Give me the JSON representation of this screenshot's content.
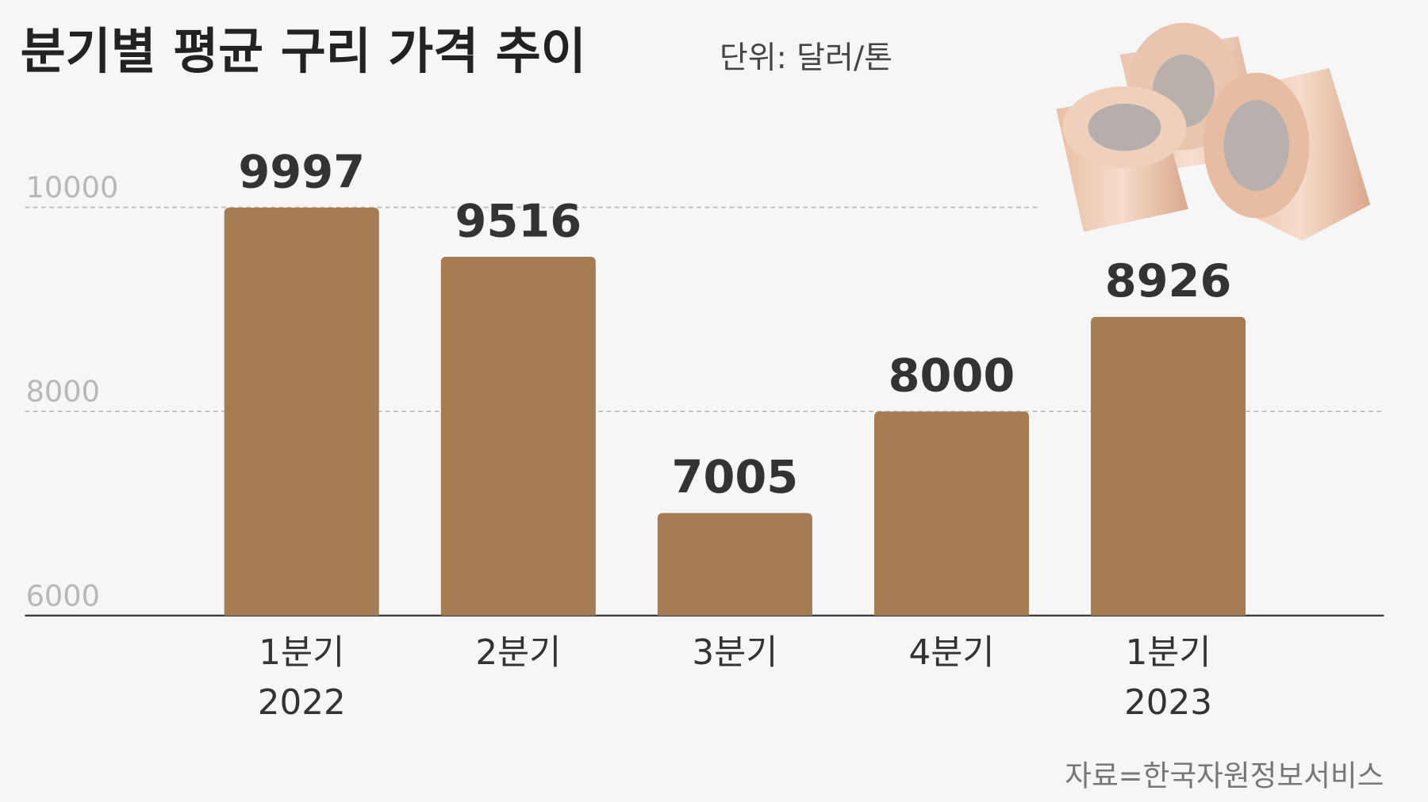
{
  "chart_data": {
    "type": "bar",
    "title": "분기별 평균 구리 가격 추이",
    "subtitle": "단위: 달러/톤",
    "categories": [
      "1분기",
      "2분기",
      "3분기",
      "4분기",
      "1분기"
    ],
    "x_sublabels": [
      "2022",
      null,
      null,
      null,
      "2023"
    ],
    "values": [
      9997,
      9516,
      7005,
      8000,
      8926
    ],
    "color": "#a67c52",
    "ylim": [
      6000,
      10000
    ],
    "yticks": [
      6000,
      8000,
      10000
    ],
    "grid": true,
    "source": "자료=한국자원정보서비스"
  }
}
